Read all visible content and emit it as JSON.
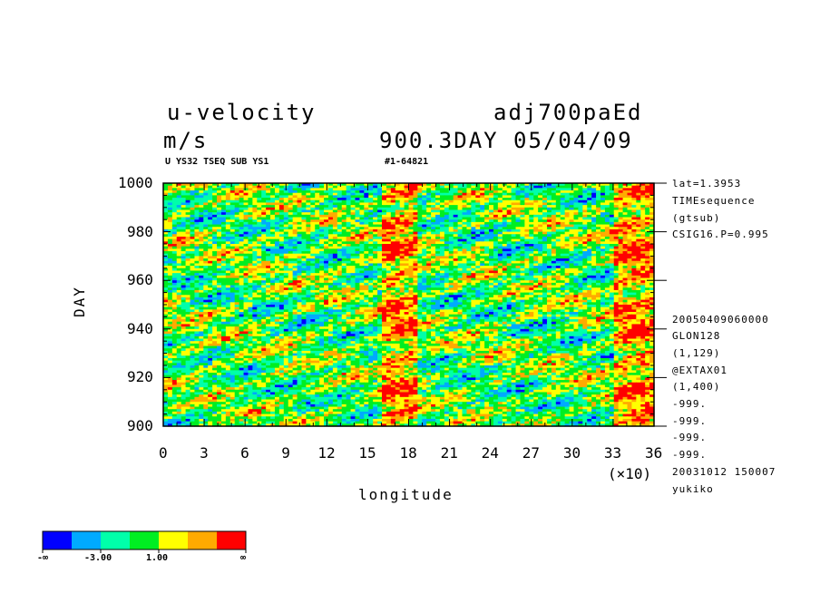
{
  "header": {
    "variable": "u-velocity",
    "run": "adj700paEd",
    "units": "m/s",
    "time_date": "900.3DAY 05/04/09",
    "subtitle_left": "U YS32 TSEQ SUB YS1",
    "subtitle_right": "#1-64821"
  },
  "right_info": {
    "top": [
      "lat=1.3953",
      "TIMEsequence",
      "(gtsub)",
      "CSIG16.P=0.995"
    ],
    "bottom": [
      "20050409060000",
      "GLON128",
      "(1,129)",
      "@EXTAX01",
      "(1,400)",
      "-999.",
      "-999.",
      "-999.",
      "-999.",
      "20031012 150007",
      "yukiko"
    ]
  },
  "chart_data": {
    "type": "heatmap",
    "title": "u-velocity",
    "xlabel": "longitude",
    "ylabel": "DAY",
    "x_multiplier_label": "(×10)",
    "xlim": [
      0,
      36
    ],
    "ylim": [
      900,
      1000
    ],
    "xticks": [
      "0",
      "3",
      "6",
      "9",
      "12",
      "15",
      "18",
      "21",
      "24",
      "27",
      "30",
      "33",
      "36"
    ],
    "yticks": [
      "900",
      "920",
      "940",
      "960",
      "980",
      "1000"
    ],
    "colorbar": {
      "colors": [
        "#0000ff",
        "#00aaff",
        "#00ffaa",
        "#00ee22",
        "#ffff00",
        "#ffaa00",
        "#ff0000"
      ],
      "labels": [
        "-∞",
        "-3.00",
        "1.00",
        "∞"
      ]
    },
    "features": [
      {
        "description": "strong positive band",
        "lon_x10": [
          16,
          18.5
        ],
        "days": [
          900,
          1000
        ]
      },
      {
        "description": "strong positive band",
        "lon_x10": [
          33,
          36
        ],
        "days": [
          900,
          1000
        ]
      }
    ]
  }
}
